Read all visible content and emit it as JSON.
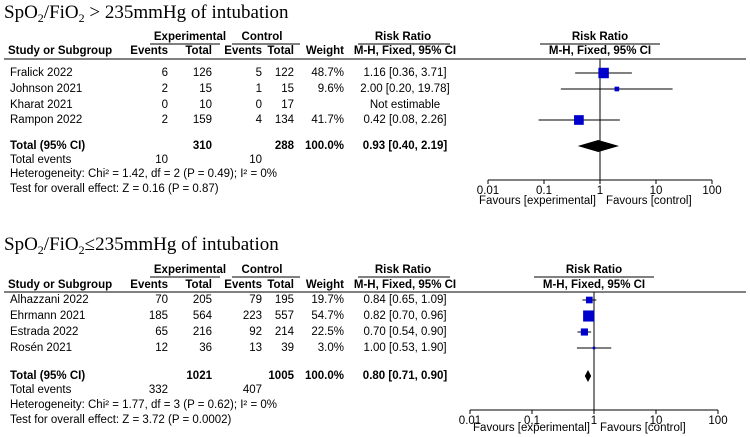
{
  "panels": [
    {
      "title_parts": [
        "SpO",
        "2",
        "/FiO",
        "2",
        " > 235mmHg of intubation"
      ],
      "headers": {
        "groups": [
          "Experimental",
          "Control",
          "Risk Ratio",
          "Risk Ratio"
        ],
        "columns": [
          "Study or Subgroup",
          "Events",
          "Total",
          "Events",
          "Total",
          "Weight",
          "M-H, Fixed, 95% CI",
          "M-H, Fixed, 95% CI"
        ]
      },
      "studies": [
        {
          "name": "Fralick 2022",
          "exp_events": 6,
          "exp_total": 126,
          "ctl_events": 5,
          "ctl_total": 122,
          "weight": 48.7,
          "weight_label": "48.7%",
          "rr": 1.16,
          "ci": [
            0.36,
            3.71
          ],
          "ci_label": "1.16 [0.36, 3.71]"
        },
        {
          "name": "Johnson 2021",
          "exp_events": 2,
          "exp_total": 15,
          "ctl_events": 1,
          "ctl_total": 15,
          "weight": 9.6,
          "weight_label": "9.6%",
          "rr": 2.0,
          "ci": [
            0.2,
            19.78
          ],
          "ci_label": "2.00 [0.20, 19.78]"
        },
        {
          "name": "Kharat 2021",
          "exp_events": 0,
          "exp_total": 10,
          "ctl_events": 0,
          "ctl_total": 17,
          "weight": null,
          "weight_label": null,
          "rr": null,
          "ci": null,
          "ci_label": "Not estimable"
        },
        {
          "name": "Rampon 2022",
          "exp_events": 2,
          "exp_total": 159,
          "ctl_events": 4,
          "ctl_total": 134,
          "weight": 41.7,
          "weight_label": "41.7%",
          "rr": 0.42,
          "ci": [
            0.08,
            2.26
          ],
          "ci_label": "0.42 [0.08, 2.26]"
        }
      ],
      "total": {
        "label": "Total (95% CI)",
        "exp_total": 310,
        "ctl_total": 288,
        "weight": 100,
        "weight_label": "100.0%",
        "rr": 0.93,
        "ci": [
          0.4,
          2.19
        ],
        "ci_label": "0.93 [0.40, 2.19]"
      },
      "total_events": {
        "label": "Total events",
        "exp": 10,
        "ctl": 10
      },
      "heterogeneity": "Heterogeneity: Chi² = 1.42, df = 2 (P = 0.49); I² = 0%",
      "overall_effect": "Test for overall effect: Z = 0.16 (P = 0.87)",
      "axis": {
        "scale": "log",
        "xlim": [
          0.01,
          100
        ],
        "xticks": [
          0.01,
          0.1,
          1,
          10,
          100
        ],
        "favours_left": "Favours [experimental]",
        "favours_right": "Favours [control]"
      },
      "color": "#0000cc"
    },
    {
      "title_parts": [
        "SpO",
        "2",
        "/FiO",
        "2",
        "≤235mmHg of intubation"
      ],
      "headers": {
        "groups": [
          "Experimental",
          "Control",
          "Risk Ratio",
          "Risk Ratio"
        ],
        "columns": [
          "Study or Subgroup",
          "Events",
          "Total",
          "Events",
          "Total",
          "Weight",
          "M-H, Fixed, 95% CI",
          "M-H, Fixed, 95% CI"
        ]
      },
      "studies": [
        {
          "name": "Alhazzani 2022",
          "exp_events": 70,
          "exp_total": 205,
          "ctl_events": 79,
          "ctl_total": 195,
          "weight": 19.7,
          "weight_label": "19.7%",
          "rr": 0.84,
          "ci": [
            0.65,
            1.09
          ],
          "ci_label": "0.84 [0.65, 1.09]"
        },
        {
          "name": "Ehrmann 2021",
          "exp_events": 185,
          "exp_total": 564,
          "ctl_events": 223,
          "ctl_total": 557,
          "weight": 54.7,
          "weight_label": "54.7%",
          "rr": 0.82,
          "ci": [
            0.7,
            0.96
          ],
          "ci_label": "0.82 [0.70, 0.96]"
        },
        {
          "name": "Estrada 2022",
          "exp_events": 65,
          "exp_total": 216,
          "ctl_events": 92,
          "ctl_total": 214,
          "weight": 22.5,
          "weight_label": "22.5%",
          "rr": 0.7,
          "ci": [
            0.54,
            0.9
          ],
          "ci_label": "0.70 [0.54, 0.90]"
        },
        {
          "name": "Rosén 2021",
          "exp_events": 12,
          "exp_total": 36,
          "ctl_events": 13,
          "ctl_total": 39,
          "weight": 3.0,
          "weight_label": "3.0%",
          "rr": 1.0,
          "ci": [
            0.53,
            1.9
          ],
          "ci_label": "1.00 [0.53, 1.90]"
        }
      ],
      "total": {
        "label": "Total (95% CI)",
        "exp_total": 1021,
        "ctl_total": 1005,
        "weight": 100,
        "weight_label": "100.0%",
        "rr": 0.8,
        "ci": [
          0.71,
          0.9
        ],
        "ci_label": "0.80 [0.71, 0.90]"
      },
      "total_events": {
        "label": "Total events",
        "exp": 332,
        "ctl": 407
      },
      "heterogeneity": "Heterogeneity: Chi² = 1.77, df = 3 (P = 0.62); I² = 0%",
      "overall_effect": "Test for overall effect: Z = 3.72 (P = 0.0002)",
      "axis": {
        "scale": "log",
        "xlim": [
          0.01,
          100
        ],
        "xticks": [
          0.01,
          0.1,
          1,
          10,
          100
        ],
        "favours_left": "Favours [experimental]",
        "favours_right": "Favours [control]"
      },
      "color": "#0000cc"
    }
  ]
}
